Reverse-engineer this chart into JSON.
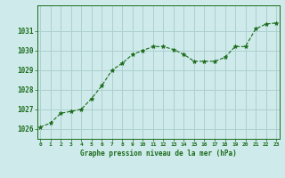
{
  "x": [
    0,
    1,
    2,
    3,
    4,
    5,
    6,
    7,
    8,
    9,
    10,
    11,
    12,
    13,
    14,
    15,
    16,
    17,
    18,
    19,
    20,
    21,
    22,
    23
  ],
  "y": [
    1026.1,
    1026.3,
    1026.8,
    1026.9,
    1027.0,
    1027.55,
    1028.2,
    1029.0,
    1029.35,
    1029.8,
    1030.0,
    1030.2,
    1030.2,
    1030.05,
    1029.8,
    1029.45,
    1029.45,
    1029.45,
    1029.65,
    1030.2,
    1030.2,
    1031.1,
    1031.35,
    1031.4
  ],
  "line_color": "#1a6b1a",
  "marker": "*",
  "marker_size": 3.5,
  "bg_color": "#ceeaea",
  "grid_color": "#afd0d0",
  "text_color": "#1a6b1a",
  "xlabel": "Graphe pression niveau de la mer (hPa)",
  "ylim_min": 1025.5,
  "ylim_max": 1032.3,
  "yticks": [
    1026,
    1027,
    1028,
    1029,
    1030,
    1031
  ],
  "xticks": [
    0,
    1,
    2,
    3,
    4,
    5,
    6,
    7,
    8,
    9,
    10,
    11,
    12,
    13,
    14,
    15,
    16,
    17,
    18,
    19,
    20,
    21,
    22,
    23
  ],
  "xtick_labels": [
    "0",
    "1",
    "2",
    "3",
    "4",
    "5",
    "6",
    "7",
    "8",
    "9",
    "10",
    "11",
    "12",
    "13",
    "14",
    "15",
    "16",
    "17",
    "18",
    "19",
    "20",
    "21",
    "22",
    "23"
  ]
}
